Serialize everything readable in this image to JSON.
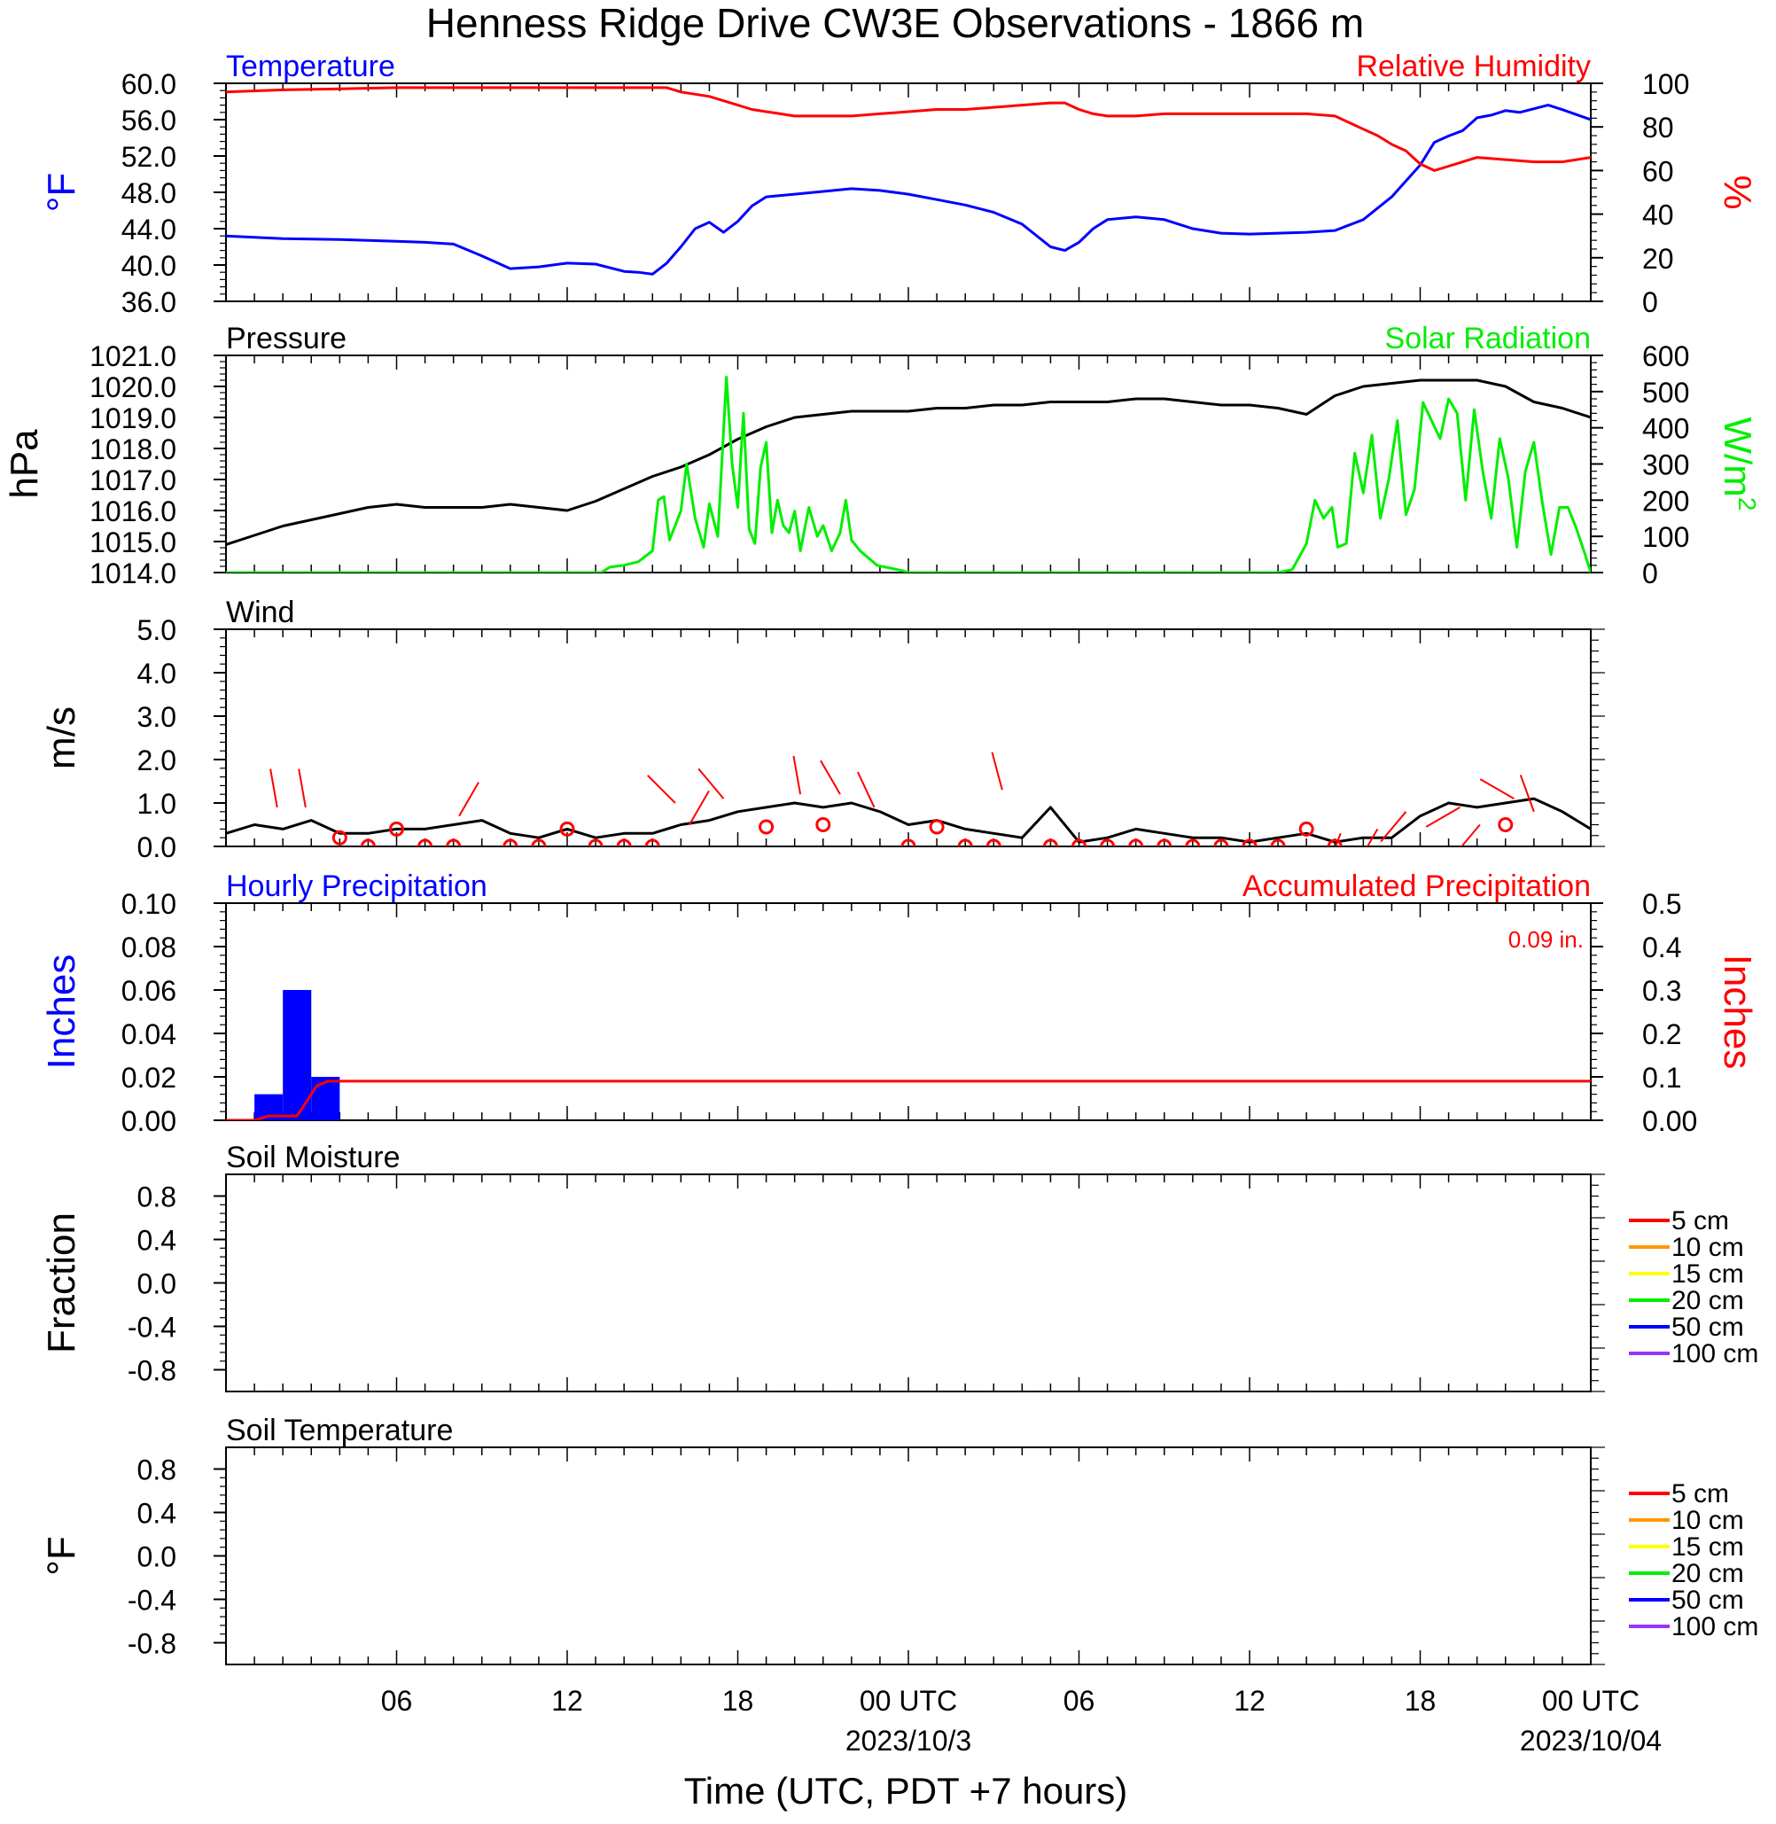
{
  "title": "Henness Ridge Drive CW3E Observations - 1866 m",
  "x_axis": {
    "label": "Time (UTC, PDT +7 hours)",
    "start": "2023-10-02 00:00 UTC",
    "end": "2023-10-04 00:00 UTC",
    "ticks": [
      {
        "hour": 6,
        "label": "06"
      },
      {
        "hour": 12,
        "label": "12"
      },
      {
        "hour": 18,
        "label": "18"
      },
      {
        "hour": 24,
        "label": "00 UTC",
        "date": "2023/10/3"
      },
      {
        "hour": 30,
        "label": "06"
      },
      {
        "hour": 36,
        "label": "12"
      },
      {
        "hour": 42,
        "label": "18"
      },
      {
        "hour": 48,
        "label": "00 UTC",
        "date": "2023/10/04"
      }
    ]
  },
  "colors": {
    "blue": "#0000ff",
    "red": "#ff0000",
    "green": "#00ee00",
    "black": "#000000",
    "orange": "#ff9900",
    "yellow": "#ffff00",
    "purple": "#9933ff"
  },
  "chart_data": [
    {
      "id": "temp_rh",
      "type": "line",
      "left_title": "Temperature",
      "right_title": "Relative Humidity",
      "left_label": "°F",
      "right_label": "%",
      "left_ticks": [
        "60.0",
        "56.0",
        "52.0",
        "48.0",
        "44.0",
        "40.0",
        "36.0"
      ],
      "right_ticks": [
        "100",
        "80",
        "60",
        "40",
        "20",
        "0"
      ],
      "ylim": [
        36,
        60
      ],
      "y2lim": [
        0,
        100
      ],
      "series": [
        {
          "name": "Temperature",
          "axis": "left",
          "color": "#0000ff",
          "x": [
            0,
            2,
            4,
            6,
            7,
            8,
            9,
            10,
            11,
            12,
            13,
            14,
            14.5,
            15,
            15.5,
            16,
            16.5,
            17,
            17.5,
            18,
            18.5,
            19,
            20,
            21,
            22,
            23,
            24,
            25,
            26,
            27,
            28,
            29,
            29.5,
            30,
            30.5,
            31,
            32,
            33,
            34,
            35,
            36,
            37,
            38,
            39,
            40,
            41,
            42,
            42.5,
            43,
            43.5,
            44,
            44.5,
            45,
            45.5,
            46,
            46.5,
            47,
            48
          ],
          "y": [
            43.2,
            42.9,
            42.8,
            42.6,
            42.5,
            42.3,
            41,
            39.6,
            39.8,
            40.2,
            40.1,
            39.3,
            39.2,
            39,
            40.2,
            42,
            44,
            44.7,
            43.6,
            44.8,
            46.5,
            47.5,
            47.8,
            48.1,
            48.4,
            48.2,
            47.8,
            47.2,
            46.6,
            45.8,
            44.5,
            42,
            41.6,
            42.5,
            44,
            45,
            45.3,
            45,
            44,
            43.5,
            43.4,
            43.5,
            43.6,
            43.8,
            45,
            47.5,
            51,
            53.5,
            54.2,
            54.8,
            56.2,
            56.5,
            57,
            56.8,
            57.2,
            57.6,
            57.1,
            56
          ]
        },
        {
          "name": "Relative Humidity",
          "axis": "right",
          "color": "#ff0000",
          "x": [
            0,
            2,
            4,
            6,
            8,
            10,
            12,
            14,
            15.5,
            16,
            17,
            17.5,
            18,
            18.5,
            19,
            19.5,
            20,
            21,
            22,
            23,
            24,
            25,
            26,
            27,
            28,
            29,
            29.5,
            30,
            30.5,
            31,
            32,
            33,
            34,
            35,
            36,
            37,
            38,
            39,
            39.5,
            40,
            40.5,
            41,
            41.5,
            42,
            42.5,
            43,
            43.5,
            44,
            45,
            46,
            47,
            48
          ],
          "y": [
            96,
            97,
            97.5,
            98,
            98,
            98,
            98,
            98,
            98,
            96,
            94,
            92,
            90,
            88,
            87,
            86,
            85,
            85,
            85,
            86,
            87,
            88,
            88,
            89,
            90,
            91,
            91,
            88,
            86,
            85,
            85,
            86,
            86,
            86,
            86,
            86,
            86,
            85,
            82,
            79,
            76,
            72,
            69,
            63,
            60,
            62,
            64,
            66,
            65,
            64,
            64,
            66
          ]
        }
      ]
    },
    {
      "id": "pres_solar",
      "type": "line",
      "left_title": "Pressure",
      "right_title": "Solar Radiation",
      "left_label": "hPa",
      "right_label_base": "W/m",
      "right_label_sup": "2",
      "left_ticks": [
        "1021.0",
        "1020.0",
        "1019.0",
        "1018.0",
        "1017.0",
        "1016.0",
        "1015.0",
        "1014.0"
      ],
      "right_ticks": [
        "600",
        "500",
        "400",
        "300",
        "200",
        "100",
        "0"
      ],
      "ylim": [
        1014,
        1021
      ],
      "y2lim": [
        0,
        600
      ],
      "series": [
        {
          "name": "Pressure",
          "axis": "left",
          "color": "#000000",
          "x": [
            0,
            1,
            2,
            3,
            4,
            5,
            6,
            7,
            8,
            9,
            10,
            11,
            12,
            13,
            14,
            15,
            16,
            17,
            18,
            19,
            20,
            21,
            22,
            23,
            24,
            25,
            26,
            27,
            28,
            29,
            30,
            31,
            32,
            33,
            34,
            35,
            36,
            37,
            38,
            39,
            40,
            41,
            42,
            43,
            44,
            45,
            46,
            47,
            48
          ],
          "y": [
            1014.9,
            1015.2,
            1015.5,
            1015.7,
            1015.9,
            1016.1,
            1016.2,
            1016.1,
            1016.1,
            1016.1,
            1016.2,
            1016.1,
            1016.0,
            1016.3,
            1016.7,
            1017.1,
            1017.4,
            1017.8,
            1018.3,
            1018.7,
            1019.0,
            1019.1,
            1019.2,
            1019.2,
            1019.2,
            1019.3,
            1019.3,
            1019.4,
            1019.4,
            1019.5,
            1019.5,
            1019.5,
            1019.6,
            1019.6,
            1019.5,
            1019.4,
            1019.4,
            1019.3,
            1019.1,
            1019.7,
            1020.0,
            1020.1,
            1020.2,
            1020.2,
            1020.2,
            1020.0,
            1019.5,
            1019.3,
            1019.0
          ]
        },
        {
          "name": "Solar Radiation",
          "axis": "right",
          "color": "#00ee00",
          "x": [
            0,
            13.2,
            13.5,
            14,
            14.5,
            15,
            15.2,
            15.4,
            15.6,
            16,
            16.2,
            16.5,
            16.8,
            17,
            17.3,
            17.6,
            17.8,
            18,
            18.2,
            18.4,
            18.6,
            18.8,
            19,
            19.2,
            19.4,
            19.6,
            19.8,
            20,
            20.2,
            20.5,
            20.8,
            21,
            21.3,
            21.6,
            21.8,
            22,
            22.3,
            22.6,
            22.9,
            23.2,
            23.5,
            23.8,
            24,
            24.5,
            25,
            37,
            37.5,
            38,
            38.3,
            38.6,
            38.9,
            39.1,
            39.4,
            39.7,
            40,
            40.3,
            40.6,
            40.9,
            41.2,
            41.5,
            41.8,
            42.1,
            42.4,
            42.7,
            43,
            43.3,
            43.6,
            43.9,
            44.2,
            44.5,
            44.8,
            45.1,
            45.4,
            45.7,
            46,
            46.3,
            46.6,
            46.9,
            47.2,
            47.5,
            47.8,
            48
          ],
          "y": [
            0,
            0,
            15,
            20,
            30,
            60,
            200,
            210,
            90,
            170,
            300,
            150,
            70,
            190,
            100,
            540,
            300,
            180,
            440,
            120,
            80,
            290,
            360,
            110,
            200,
            130,
            110,
            170,
            60,
            180,
            100,
            130,
            60,
            110,
            200,
            90,
            60,
            40,
            20,
            15,
            10,
            5,
            0,
            0,
            0,
            0,
            8,
            80,
            200,
            150,
            180,
            70,
            80,
            330,
            220,
            380,
            150,
            260,
            420,
            160,
            230,
            470,
            420,
            370,
            480,
            440,
            200,
            450,
            280,
            150,
            370,
            260,
            70,
            280,
            360,
            190,
            50,
            180,
            180,
            120,
            50,
            0
          ]
        }
      ]
    },
    {
      "id": "wind",
      "type": "line",
      "left_title": "Wind",
      "left_label": "m/s",
      "left_ticks": [
        "5.0",
        "4.0",
        "3.0",
        "2.0",
        "1.0",
        "0.0"
      ],
      "ylim": [
        0,
        5
      ],
      "series": [
        {
          "name": "Wind",
          "axis": "left",
          "color": "#000000",
          "x": [
            0,
            1,
            2,
            3,
            4,
            5,
            6,
            7,
            8,
            9,
            10,
            11,
            12,
            13,
            14,
            15,
            16,
            17,
            18,
            19,
            20,
            21,
            22,
            23,
            24,
            25,
            26,
            27,
            28,
            29,
            30,
            31,
            32,
            33,
            34,
            35,
            36,
            37,
            38,
            39,
            40,
            41,
            42,
            43,
            44,
            45,
            46,
            47,
            48
          ],
          "y": [
            0.3,
            0.5,
            0.4,
            0.6,
            0.3,
            0.3,
            0.4,
            0.4,
            0.5,
            0.6,
            0.3,
            0.2,
            0.4,
            0.2,
            0.3,
            0.3,
            0.5,
            0.6,
            0.8,
            0.9,
            1.0,
            0.9,
            1.0,
            0.8,
            0.5,
            0.6,
            0.4,
            0.3,
            0.2,
            0.9,
            0.1,
            0.2,
            0.4,
            0.3,
            0.2,
            0.2,
            0.1,
            0.2,
            0.3,
            0.1,
            0.2,
            0.2,
            0.7,
            1.0,
            0.9,
            1.0,
            1.1,
            0.8,
            0.4
          ]
        }
      ],
      "markers": {
        "color": "#ff0000",
        "hours": [
          4,
          5,
          6,
          7,
          8,
          10,
          11,
          12,
          13,
          14,
          15,
          19,
          21,
          24,
          25,
          26,
          27,
          29,
          30,
          31,
          32,
          33,
          34,
          35,
          36,
          37,
          38,
          39,
          45
        ],
        "values": [
          0.2,
          0,
          0.4,
          0,
          0,
          0,
          0,
          0.4,
          0,
          0,
          0,
          0.45,
          0.5,
          0,
          0.45,
          0,
          0,
          0,
          0,
          0,
          0,
          0,
          0,
          0,
          0,
          0,
          0.4,
          0,
          0.5
        ]
      },
      "barbs": {
        "color": "#ff0000",
        "points": [
          {
            "hour": 1.8,
            "value": 0.9,
            "angle": -10
          },
          {
            "hour": 2.8,
            "value": 0.9,
            "angle": -10
          },
          {
            "hour": 8.2,
            "value": 0.7,
            "angle": 30
          },
          {
            "hour": 15.8,
            "value": 1.0,
            "angle": -45
          },
          {
            "hour": 16.3,
            "value": 0.5,
            "angle": 30
          },
          {
            "hour": 17.5,
            "value": 1.1,
            "angle": -40
          },
          {
            "hour": 20.2,
            "value": 1.2,
            "angle": -10
          },
          {
            "hour": 21.6,
            "value": 1.2,
            "angle": -30
          },
          {
            "hour": 22.8,
            "value": 0.9,
            "angle": -25
          },
          {
            "hour": 27.3,
            "value": 1.3,
            "angle": -15
          },
          {
            "hour": 39.2,
            "value": 0.3,
            "angle": -160
          },
          {
            "hour": 40.5,
            "value": 0.4,
            "angle": -150
          },
          {
            "hour": 41.5,
            "value": 0.8,
            "angle": -140
          },
          {
            "hour": 43.4,
            "value": 0.9,
            "angle": -120
          },
          {
            "hour": 44.1,
            "value": 0.5,
            "angle": -140
          },
          {
            "hour": 45.3,
            "value": 1.1,
            "angle": -60
          },
          {
            "hour": 46.0,
            "value": 0.8,
            "angle": -20
          }
        ]
      }
    },
    {
      "id": "precip",
      "type": "bar",
      "left_title": "Hourly Precipitation",
      "right_title": "Accumulated Precipitation",
      "annotation": "0.09 in.",
      "left_label": "Inches",
      "right_label": "Inches",
      "left_ticks": [
        "0.10",
        "0.08",
        "0.06",
        "0.04",
        "0.02",
        "0.00"
      ],
      "right_ticks": [
        "0.5",
        "0.4",
        "0.3",
        "0.2",
        "0.1",
        "0.00"
      ],
      "ylim": [
        0,
        0.1
      ],
      "y2lim": [
        0,
        0.5
      ],
      "bars": {
        "name": "Hourly Precipitation",
        "color": "#0000ff",
        "start_hours": [
          1,
          2,
          3
        ],
        "values": [
          0.012,
          0.06,
          0.02
        ]
      },
      "series": [
        {
          "name": "Accumulated Precipitation",
          "axis": "right",
          "color": "#ff0000",
          "x": [
            0,
            1,
            1.5,
            2,
            2.5,
            2.8,
            3.2,
            3.6,
            4,
            48
          ],
          "y": [
            0,
            0,
            0.01,
            0.01,
            0.01,
            0.04,
            0.08,
            0.09,
            0.09,
            0.09
          ]
        }
      ]
    },
    {
      "id": "soil_moist",
      "type": "line",
      "left_title": "Soil Moisture",
      "left_label": "Fraction",
      "left_ticks": [
        "0.8",
        "0.4",
        "0.0",
        "-0.4",
        "-0.8"
      ],
      "ylim": [
        -1,
        1
      ],
      "legend": [
        {
          "label": "5 cm",
          "color": "#ff0000"
        },
        {
          "label": "10 cm",
          "color": "#ff9900"
        },
        {
          "label": "15 cm",
          "color": "#ffff00"
        },
        {
          "label": "20 cm",
          "color": "#00ee00"
        },
        {
          "label": "50 cm",
          "color": "#0000ff"
        },
        {
          "label": "100 cm",
          "color": "#9933ff"
        }
      ],
      "series": []
    },
    {
      "id": "soil_temp",
      "type": "line",
      "left_title": "Soil Temperature",
      "left_label": "°F",
      "left_ticks": [
        "0.8",
        "0.4",
        "0.0",
        "-0.4",
        "-0.8"
      ],
      "ylim": [
        -1,
        1
      ],
      "legend": [
        {
          "label": "5 cm",
          "color": "#ff0000"
        },
        {
          "label": "10 cm",
          "color": "#ff9900"
        },
        {
          "label": "15 cm",
          "color": "#ffff00"
        },
        {
          "label": "20 cm",
          "color": "#00ee00"
        },
        {
          "label": "50 cm",
          "color": "#0000ff"
        },
        {
          "label": "100 cm",
          "color": "#9933ff"
        }
      ],
      "series": []
    }
  ]
}
